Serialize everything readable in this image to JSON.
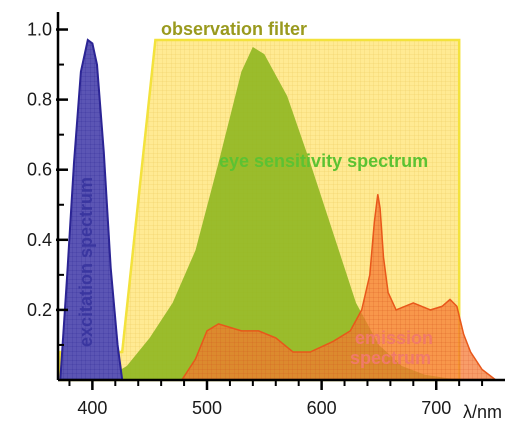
{
  "chart_data": {
    "type": "area",
    "x_unit_label": "λ/nm",
    "xlim": [
      370,
      760
    ],
    "ylim": [
      0,
      1.05
    ],
    "x_ticks": [
      400,
      500,
      600,
      700
    ],
    "y_ticks": [
      0.2,
      0.4,
      0.6,
      0.8,
      1.0
    ],
    "x_tick_labels": [
      "400",
      "500",
      "600",
      "700"
    ],
    "y_tick_labels": [
      "0.2",
      "0.4",
      "0.6",
      "0.8",
      "1.0"
    ],
    "grid": false,
    "annotations": {
      "observation_filter": "observation filter",
      "eye_sensitivity": "eye sensitivity spectrum",
      "excitation": "excitation spectrum",
      "emission_line1": "emission",
      "emission_line2": "spectrum"
    },
    "colors": {
      "filter_fill": "#ffe88a",
      "filter_stroke": "#f3e23c",
      "eye_fill": "#8cb51e",
      "excitation_fill": "#5b55b4",
      "excitation_stroke": "#2b2494",
      "emission_fill": "#f5772f",
      "emission_stroke": "#e8571a",
      "filter_label": "#9a9a1e",
      "eye_label": "#5cc232",
      "emission_label": "#f07a6a",
      "excitation_label": "#3a36a0"
    },
    "series": [
      {
        "name": "observation filter",
        "x": [
          372,
          426,
          455,
          720,
          720
        ],
        "y": [
          0.08,
          0.08,
          0.97,
          0.97,
          0.0
        ]
      },
      {
        "name": "eye sensitivity spectrum",
        "x": [
          410,
          430,
          450,
          470,
          490,
          510,
          530,
          540,
          550,
          570,
          590,
          610,
          630,
          650,
          670,
          690,
          720
        ],
        "y": [
          0.0,
          0.04,
          0.12,
          0.22,
          0.37,
          0.62,
          0.88,
          0.95,
          0.93,
          0.81,
          0.62,
          0.42,
          0.22,
          0.1,
          0.04,
          0.015,
          0.0
        ]
      },
      {
        "name": "excitation spectrum",
        "x": [
          372,
          378,
          384,
          390,
          396,
          400,
          404,
          410,
          416,
          422,
          426
        ],
        "y": [
          0.0,
          0.3,
          0.62,
          0.88,
          0.97,
          0.96,
          0.9,
          0.65,
          0.32,
          0.1,
          0.0
        ]
      },
      {
        "name": "emission spectrum",
        "x": [
          478,
          490,
          500,
          510,
          520,
          530,
          545,
          560,
          575,
          590,
          610,
          625,
          635,
          642,
          646,
          649,
          651,
          654,
          658,
          665,
          680,
          695,
          705,
          712,
          718,
          724,
          730,
          740,
          752
        ],
        "y": [
          0.0,
          0.06,
          0.14,
          0.16,
          0.15,
          0.14,
          0.14,
          0.12,
          0.08,
          0.08,
          0.11,
          0.14,
          0.2,
          0.3,
          0.45,
          0.53,
          0.49,
          0.35,
          0.25,
          0.2,
          0.22,
          0.2,
          0.21,
          0.23,
          0.21,
          0.13,
          0.08,
          0.03,
          0.0
        ]
      }
    ]
  }
}
